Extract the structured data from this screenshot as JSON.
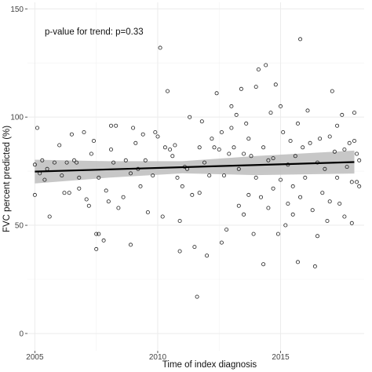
{
  "chart_data": {
    "type": "scatter",
    "xlabel": "Time of index diagnosis",
    "ylabel": "FVC percent predicted (%)",
    "annotation": "p-value for trend: p=0.33",
    "xlim": [
      2004.7,
      2018.4
    ],
    "ylim": [
      -8,
      153
    ],
    "x_ticks": [
      2005,
      2010,
      2015
    ],
    "y_ticks": [
      0,
      50,
      100,
      150
    ],
    "grid": true,
    "colors": {
      "points": "#222222",
      "trend_line": "#000000",
      "confidence_band": "#bdbdbd",
      "grid": "#ebebeb"
    },
    "trend": {
      "x": [
        2005.0,
        2018.0
      ],
      "y": [
        74.8,
        79.2
      ]
    },
    "confidence_band": {
      "x": [
        2005.0,
        2008.0,
        2011.0,
        2014.0,
        2018.0
      ],
      "lower": [
        69.3,
        72.0,
        74.0,
        73.2,
        73.9
      ],
      "upper": [
        80.3,
        79.6,
        79.6,
        82.0,
        84.5
      ]
    },
    "points": [
      [
        2005.0,
        64
      ],
      [
        2005.0,
        78
      ],
      [
        2005.1,
        95
      ],
      [
        2005.2,
        74
      ],
      [
        2005.3,
        80
      ],
      [
        2005.4,
        71
      ],
      [
        2005.5,
        76
      ],
      [
        2005.6,
        54
      ],
      [
        2005.8,
        79
      ],
      [
        2006.0,
        87
      ],
      [
        2006.1,
        73
      ],
      [
        2006.2,
        65
      ],
      [
        2006.3,
        79
      ],
      [
        2006.4,
        65
      ],
      [
        2006.5,
        92
      ],
      [
        2006.6,
        80
      ],
      [
        2006.7,
        79
      ],
      [
        2006.8,
        72
      ],
      [
        2006.8,
        67
      ],
      [
        2007.0,
        93
      ],
      [
        2007.1,
        62
      ],
      [
        2007.2,
        59
      ],
      [
        2007.3,
        83
      ],
      [
        2007.4,
        89
      ],
      [
        2007.5,
        46
      ],
      [
        2007.5,
        39
      ],
      [
        2007.6,
        72
      ],
      [
        2007.6,
        46
      ],
      [
        2007.8,
        43
      ],
      [
        2007.9,
        66
      ],
      [
        2008.0,
        61
      ],
      [
        2008.1,
        85
      ],
      [
        2008.1,
        96
      ],
      [
        2008.2,
        79
      ],
      [
        2008.3,
        96
      ],
      [
        2008.4,
        58
      ],
      [
        2008.6,
        63
      ],
      [
        2008.7,
        80
      ],
      [
        2008.9,
        74
      ],
      [
        2008.9,
        41
      ],
      [
        2009.0,
        95
      ],
      [
        2009.1,
        88
      ],
      [
        2009.2,
        76
      ],
      [
        2009.3,
        68
      ],
      [
        2009.4,
        92
      ],
      [
        2009.5,
        80
      ],
      [
        2009.6,
        56
      ],
      [
        2009.8,
        73
      ],
      [
        2009.9,
        93
      ],
      [
        2010.0,
        91
      ],
      [
        2010.1,
        132
      ],
      [
        2010.2,
        54
      ],
      [
        2010.3,
        86
      ],
      [
        2010.4,
        112
      ],
      [
        2010.5,
        85
      ],
      [
        2010.6,
        82
      ],
      [
        2010.7,
        87
      ],
      [
        2010.8,
        72
      ],
      [
        2010.9,
        52
      ],
      [
        2010.9,
        38
      ],
      [
        2011.0,
        68
      ],
      [
        2011.1,
        77
      ],
      [
        2011.2,
        76
      ],
      [
        2011.3,
        100
      ],
      [
        2011.4,
        64
      ],
      [
        2011.5,
        40
      ],
      [
        2011.6,
        17
      ],
      [
        2011.7,
        86
      ],
      [
        2011.7,
        65
      ],
      [
        2011.8,
        98
      ],
      [
        2011.9,
        79
      ],
      [
        2012.0,
        36
      ],
      [
        2012.1,
        73
      ],
      [
        2012.2,
        90
      ],
      [
        2012.3,
        86
      ],
      [
        2012.4,
        111
      ],
      [
        2012.5,
        85
      ],
      [
        2012.6,
        93
      ],
      [
        2012.6,
        42
      ],
      [
        2012.7,
        73
      ],
      [
        2012.8,
        48
      ],
      [
        2012.9,
        83
      ],
      [
        2013.0,
        95
      ],
      [
        2013.0,
        105
      ],
      [
        2013.1,
        86
      ],
      [
        2013.2,
        101
      ],
      [
        2013.3,
        59
      ],
      [
        2013.3,
        76
      ],
      [
        2013.4,
        113
      ],
      [
        2013.5,
        83
      ],
      [
        2013.5,
        55
      ],
      [
        2013.6,
        97
      ],
      [
        2013.7,
        64
      ],
      [
        2013.7,
        90
      ],
      [
        2013.8,
        82
      ],
      [
        2013.9,
        46
      ],
      [
        2014.0,
        114
      ],
      [
        2014.0,
        72
      ],
      [
        2014.1,
        122
      ],
      [
        2014.2,
        63
      ],
      [
        2014.3,
        86
      ],
      [
        2014.3,
        32
      ],
      [
        2014.4,
        124
      ],
      [
        2014.5,
        80
      ],
      [
        2014.5,
        58
      ],
      [
        2014.6,
        102
      ],
      [
        2014.7,
        81
      ],
      [
        2014.7,
        67
      ],
      [
        2014.8,
        115
      ],
      [
        2014.9,
        46
      ],
      [
        2015.0,
        105
      ],
      [
        2015.0,
        71
      ],
      [
        2015.1,
        93
      ],
      [
        2015.2,
        50
      ],
      [
        2015.3,
        78
      ],
      [
        2015.3,
        60
      ],
      [
        2015.4,
        89
      ],
      [
        2015.5,
        68
      ],
      [
        2015.5,
        55
      ],
      [
        2015.6,
        82
      ],
      [
        2015.7,
        97
      ],
      [
        2015.7,
        33
      ],
      [
        2015.8,
        136
      ],
      [
        2015.8,
        63
      ],
      [
        2015.9,
        86
      ],
      [
        2016.0,
        72
      ],
      [
        2016.1,
        103
      ],
      [
        2016.2,
        88
      ],
      [
        2016.3,
        57
      ],
      [
        2016.4,
        31
      ],
      [
        2016.5,
        79
      ],
      [
        2016.5,
        45
      ],
      [
        2016.6,
        90
      ],
      [
        2016.7,
        65
      ],
      [
        2016.8,
        76
      ],
      [
        2016.9,
        52
      ],
      [
        2017.0,
        91
      ],
      [
        2017.0,
        61
      ],
      [
        2017.1,
        112
      ],
      [
        2017.2,
        84
      ],
      [
        2017.3,
        96
      ],
      [
        2017.3,
        72
      ],
      [
        2017.4,
        60
      ],
      [
        2017.5,
        101
      ],
      [
        2017.6,
        85
      ],
      [
        2017.6,
        54
      ],
      [
        2017.7,
        77
      ],
      [
        2017.8,
        88
      ],
      [
        2017.9,
        70
      ],
      [
        2017.9,
        51
      ],
      [
        2018.0,
        102
      ],
      [
        2018.0,
        89
      ],
      [
        2018.1,
        83
      ],
      [
        2018.1,
        70
      ],
      [
        2018.2,
        68
      ],
      [
        2018.2,
        80
      ]
    ]
  }
}
